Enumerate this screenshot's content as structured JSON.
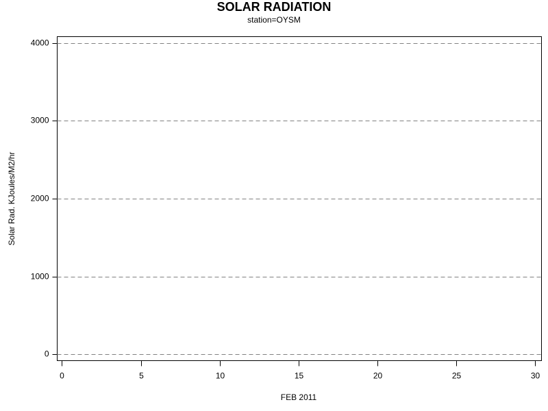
{
  "chart_data": {
    "type": "line",
    "title": "SOLAR RADIATION",
    "subtitle": "station=OYSM",
    "x_label": "FEB 2011",
    "y_label": "Solar Rad. KJoules/M2/hr",
    "series": [],
    "xlim": [
      -0.3,
      30.4
    ],
    "xticks": [
      0,
      5,
      10,
      15,
      20,
      25,
      30
    ],
    "ylim": [
      -80,
      4080
    ],
    "yticks": [
      0,
      1000,
      2000,
      3000,
      4000
    ],
    "grid": true
  }
}
